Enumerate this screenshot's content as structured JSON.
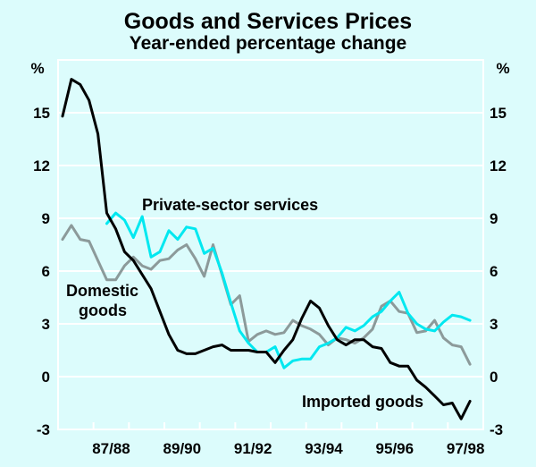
{
  "chart_data": {
    "type": "line",
    "title": "Goods and Services Prices",
    "subtitle": "Year-ended percentage change",
    "ylabel_left": "%",
    "ylabel_right": "%",
    "xlabel": "",
    "ylim": [
      -3,
      18
    ],
    "yticks": [
      -3,
      0,
      3,
      6,
      9,
      12,
      15
    ],
    "ytick_labels": [
      "-3",
      "0",
      "3",
      "6",
      "9",
      "12",
      "15"
    ],
    "grid": true,
    "x_period_labels": [
      "87/88",
      "89/90",
      "91/92",
      "93/94",
      "95/96",
      "97/98"
    ],
    "x_period_start": "86/87",
    "x_period_count": 12,
    "x_frequency": "quarterly",
    "x": [
      "Sep-86",
      "Dec-86",
      "Mar-87",
      "Jun-87",
      "Sep-87",
      "Dec-87",
      "Mar-88",
      "Jun-88",
      "Sep-88",
      "Dec-88",
      "Mar-89",
      "Jun-89",
      "Sep-89",
      "Dec-89",
      "Mar-90",
      "Jun-90",
      "Sep-90",
      "Dec-90",
      "Mar-91",
      "Jun-91",
      "Sep-91",
      "Dec-91",
      "Mar-92",
      "Jun-92",
      "Sep-92",
      "Dec-92",
      "Mar-93",
      "Jun-93",
      "Sep-93",
      "Dec-93",
      "Mar-94",
      "Jun-94",
      "Sep-94",
      "Dec-94",
      "Mar-95",
      "Jun-95",
      "Sep-95",
      "Dec-95",
      "Mar-96",
      "Jun-96",
      "Sep-96",
      "Dec-96",
      "Mar-97",
      "Jun-97",
      "Sep-97",
      "Dec-97",
      "Mar-98"
    ],
    "series": [
      {
        "name": "Imported goods",
        "color": "#000000",
        "start_index": 0,
        "values": [
          14.8,
          16.9,
          16.6,
          15.7,
          13.8,
          9.3,
          8.4,
          7.1,
          6.6,
          5.8,
          5.0,
          3.7,
          2.4,
          1.5,
          1.3,
          1.3,
          1.5,
          1.7,
          1.8,
          1.5,
          1.5,
          1.5,
          1.4,
          1.4,
          0.8,
          1.5,
          2.1,
          3.3,
          4.3,
          3.9,
          2.9,
          2.1,
          1.8,
          2.1,
          2.1,
          1.7,
          1.6,
          0.8,
          0.6,
          0.6,
          -0.2,
          -0.6,
          -1.1,
          -1.6,
          -1.5,
          -2.4,
          -1.4
        ]
      },
      {
        "name": "Domestic goods",
        "color": "#8c9a9a",
        "start_index": 0,
        "values": [
          7.8,
          8.6,
          7.8,
          7.7,
          6.6,
          5.5,
          5.5,
          6.3,
          6.8,
          6.3,
          6.1,
          6.6,
          6.7,
          7.2,
          7.5,
          6.7,
          5.7,
          7.5,
          5.8,
          4.1,
          4.6,
          2.0,
          2.4,
          2.6,
          2.4,
          2.5,
          3.2,
          2.9,
          2.7,
          2.4,
          1.8,
          2.2,
          2.1,
          1.9,
          2.2,
          2.7,
          4.0,
          4.3,
          3.7,
          3.6,
          2.5,
          2.6,
          3.2,
          2.2,
          1.8,
          1.7,
          0.7
        ]
      },
      {
        "name": "Private-sector services",
        "color": "#00e8f0",
        "start_index": 5,
        "values": [
          8.7,
          9.3,
          8.9,
          7.9,
          9.1,
          6.8,
          7.1,
          8.3,
          7.8,
          8.5,
          8.4,
          7.0,
          7.3,
          5.9,
          4.2,
          2.6,
          1.9,
          1.4,
          1.4,
          1.7,
          0.5,
          0.9,
          1.0,
          1.0,
          1.7,
          1.9,
          2.2,
          2.8,
          2.6,
          2.9,
          3.4,
          3.7,
          4.3,
          4.8,
          3.6,
          3.0,
          2.7,
          2.6,
          3.1,
          3.5,
          3.4,
          3.2
        ]
      }
    ],
    "annotations": [
      {
        "text": "Private-sector services",
        "series": "Private-sector services"
      },
      {
        "text": "Domestic",
        "series": "Domestic goods"
      },
      {
        "text": "goods",
        "series": "Domestic goods"
      },
      {
        "text": "Imported goods",
        "series": "Imported goods"
      }
    ]
  }
}
